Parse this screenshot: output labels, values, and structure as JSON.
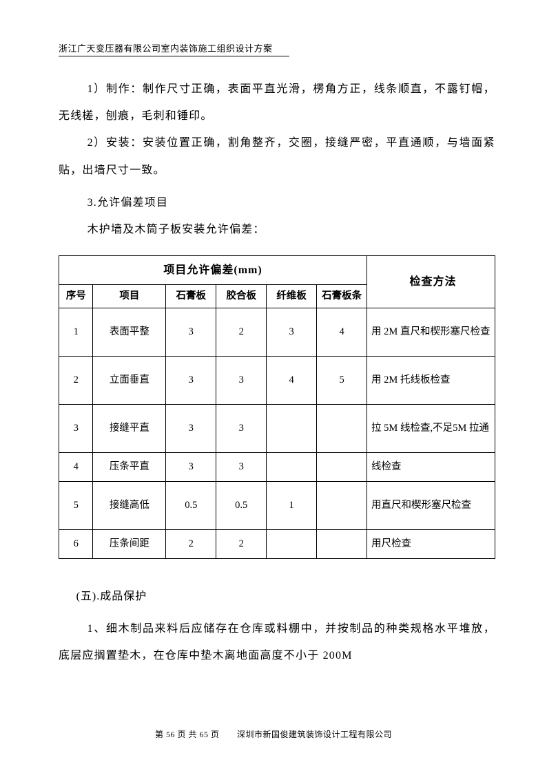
{
  "header": {
    "title": "浙江广天变压器有限公司室内装饰施工组织设计方案"
  },
  "paragraphs": {
    "p1": "1）制作：制作尺寸正确，表面平直光滑，楞角方正，线条顺直，不露钉帽，无线槎，刨痕，毛刺和锤印。",
    "p2": "2）安装：安装位置正确，割角整齐，交圈，接缝严密，平直通顺，与墙面紧贴，出墙尺寸一致。",
    "p3": "3.允许偏差项目",
    "p4": "木护墙及木筒子板安装允许偏差：",
    "s5": "(五).成品保护",
    "p6": "1、细木制品来料后应储存在仓库或料棚中，并按制品的种类规格水平堆放，底层应搁置垫木，在仓库中垫木离地面高度不小于 200M"
  },
  "table": {
    "header_main": "项目允许偏差(mm)",
    "header_method": "检查方法",
    "cols": {
      "seq": "序号",
      "item": "项目",
      "c1": "石膏板",
      "c2": "胶合板",
      "c3": "纤维板",
      "c4": "石膏板条"
    },
    "rows": [
      {
        "seq": "1",
        "item": "表面平整",
        "v1": "3",
        "v2": "2",
        "v3": "3",
        "v4": "4",
        "method": " 用 2M 直尺和楔形塞尺检查"
      },
      {
        "seq": "2",
        "item": "立面垂直",
        "v1": "3",
        "v2": "3",
        "v3": "4",
        "v4": "5",
        "method": " 用 2M 托线板检查"
      },
      {
        "seq": "3",
        "item": "接缝平直",
        "v1": "3",
        "v2": "3",
        "v3": "",
        "v4": "",
        "method": "拉 5M 线检查,不足5M 拉通"
      },
      {
        "seq": "4",
        "item": "压条平直",
        "v1": "3",
        "v2": "3",
        "v3": "",
        "v4": "",
        "method": " 线检查"
      },
      {
        "seq": "5",
        "item": "接缝高低",
        "v1": "0.5",
        "v2": "0.5",
        "v3": "1",
        "v4": "",
        "method": " 用直尺和楔形塞尺检查"
      },
      {
        "seq": "6",
        "item": "压条间距",
        "v1": "2",
        "v2": "2",
        "v3": "",
        "v4": "",
        "method": "用尺检查"
      }
    ]
  },
  "footer": {
    "page_label": "第 56 页 共 65 页",
    "company": "深圳市新国俊建筑装饰设计工程有限公司"
  }
}
